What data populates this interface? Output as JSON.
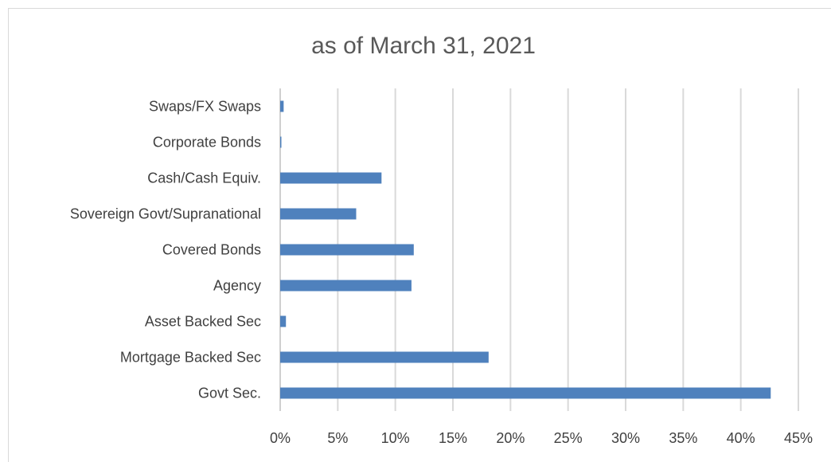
{
  "chart_data": {
    "type": "bar",
    "orientation": "horizontal",
    "title": "as of March 31, 2021",
    "xlabel": "",
    "ylabel": "",
    "categories": [
      "Swaps/FX Swaps",
      "Corporate Bonds",
      "Cash/Cash Equiv.",
      "Sovereign Govt/Supranational",
      "Covered Bonds",
      "Agency",
      "Asset Backed Sec",
      "Mortgage Backed Sec",
      "Govt Sec."
    ],
    "values": [
      0.3,
      0.1,
      8.8,
      6.6,
      11.6,
      11.4,
      0.5,
      18.1,
      42.6
    ],
    "xlim": [
      0,
      45
    ],
    "xticks": [
      0,
      5,
      10,
      15,
      20,
      25,
      30,
      35,
      40,
      45
    ],
    "xtick_labels": [
      "0%",
      "5%",
      "10%",
      "15%",
      "20%",
      "25%",
      "30%",
      "35%",
      "40%",
      "45%"
    ],
    "grid": true,
    "legend": "none",
    "bar_color": "#4f81bd"
  }
}
